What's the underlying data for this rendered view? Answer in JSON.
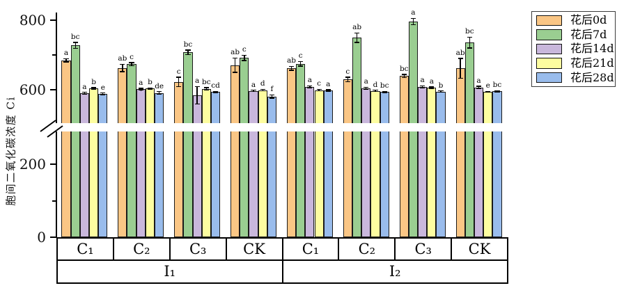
{
  "chart_data": {
    "type": "bar",
    "title": "",
    "xlabel": "",
    "ylabel": "胞间二氧化碳浓度 Ci",
    "ylim": [
      0,
      800
    ],
    "grid": false,
    "legend_position": "top-right-outside",
    "axis_break": {
      "from": 290,
      "to": 505
    },
    "y_major_ticks": [
      {
        "value": 0,
        "label": "0"
      },
      {
        "value": 200,
        "label": "200"
      },
      {
        "value": 600,
        "label": "600"
      },
      {
        "value": 800,
        "label": "800"
      }
    ],
    "y_minor_ticks": [
      100,
      700
    ],
    "categories": [
      "C₁",
      "C₂",
      "C₃",
      "CK",
      "C₁",
      "C₂",
      "C₃",
      "CK"
    ],
    "category_groups": [
      {
        "label": "I₁",
        "span": 4
      },
      {
        "label": "I₂",
        "span": 4
      }
    ],
    "series": [
      {
        "name": "花后0d",
        "color": "#FAC685",
        "values": [
          684,
          662,
          622,
          670,
          661,
          629,
          639,
          661
        ],
        "errors": [
          6,
          12,
          15,
          22,
          7,
          8,
          6,
          30
        ],
        "sig_letters": [
          "a",
          "ab",
          "c",
          "ab",
          "ab",
          "c",
          "bc",
          "ab"
        ]
      },
      {
        "name": "花后7d",
        "color": "#9ACE91",
        "values": [
          727,
          673,
          707,
          691,
          674,
          749,
          795,
          735
        ],
        "errors": [
          10,
          6,
          8,
          9,
          8,
          15,
          10,
          17
        ],
        "sig_letters": [
          "bc",
          "c",
          "bc",
          "c",
          "c",
          "ab",
          "a",
          "bc"
        ]
      },
      {
        "name": "花后14d",
        "color": "#C9B7DC",
        "values": [
          590,
          601,
          584,
          597,
          608,
          604,
          608,
          606
        ],
        "errors": [
          4,
          4,
          26,
          3,
          4,
          4,
          4,
          5
        ],
        "sig_letters": [
          "a",
          "a",
          "a",
          "a",
          "a",
          "a",
          "a",
          "a"
        ]
      },
      {
        "name": "花后21d",
        "color": "#FDFDA0",
        "values": [
          603,
          603,
          602,
          599,
          599,
          597,
          605,
          595
        ],
        "errors": [
          4,
          3,
          5,
          3,
          3,
          3,
          4,
          2
        ],
        "sig_letters": [
          "b",
          "b",
          "bc",
          "d",
          "c",
          "d",
          "a",
          "e"
        ]
      },
      {
        "name": "花后28d",
        "color": "#99BCEC",
        "values": [
          588,
          591,
          594,
          581,
          598,
          594,
          595,
          596
        ],
        "errors": [
          4,
          5,
          3,
          6,
          3,
          3,
          3,
          3
        ],
        "sig_letters": [
          "e",
          "de",
          "cd",
          "f",
          "a",
          "bc",
          "b",
          "bc"
        ]
      }
    ]
  }
}
